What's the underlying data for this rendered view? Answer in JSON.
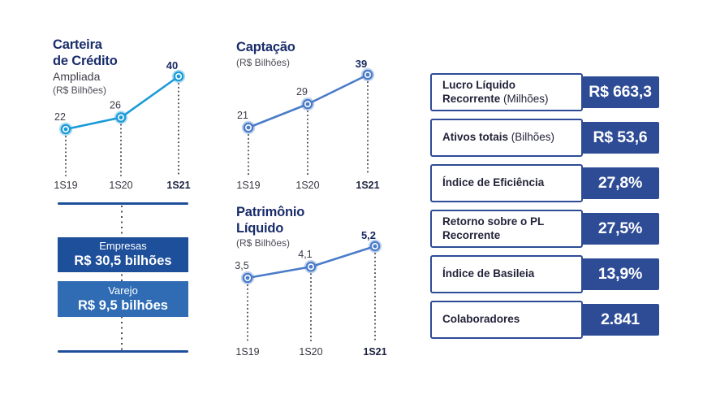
{
  "palette": {
    "title_navy": "#1a2d6b",
    "kpi_navy": "#2e4c96",
    "empresas_blue": "#1e4f9b",
    "varejo_blue": "#2f6cb4",
    "cyan_line": "#1b9bd8",
    "royal_line": "#4a7cc9",
    "dotted_gray": "#4d4d58"
  },
  "charts": [
    {
      "title_lines": [
        "Carteira",
        "de Crédito"
      ],
      "subtitle": "Ampliada",
      "unit": "(R$ Bilhões)",
      "color": "#1b9bd8",
      "x_labels": [
        "1S19",
        "1S20",
        "1S21"
      ],
      "values": [
        22,
        26,
        40
      ],
      "value_labels": [
        "22",
        "26",
        "40"
      ]
    },
    {
      "title_lines": [
        "Captação"
      ],
      "subtitle": "",
      "unit": "(R$ Bilhões)",
      "color": "#4a7cc9",
      "x_labels": [
        "1S19",
        "1S20",
        "1S21"
      ],
      "values": [
        21,
        29,
        39
      ],
      "value_labels": [
        "21",
        "29",
        "39"
      ]
    },
    {
      "title_lines": [
        "Patrimônio",
        "Líquido"
      ],
      "subtitle": "",
      "unit": "(R$ Bilhões)",
      "color": "#4a7cc9",
      "x_labels": [
        "1S19",
        "1S20",
        "1S21"
      ],
      "values": [
        3.5,
        4.1,
        5.2
      ],
      "value_labels": [
        "3,5",
        "4,1",
        "5,2"
      ]
    }
  ],
  "breakdown": {
    "items": [
      {
        "label": "Empresas",
        "value": "R$ 30,5 bilhões",
        "bg": "#1e4f9b"
      },
      {
        "label": "Varejo",
        "value": "R$ 9,5 bilhões",
        "bg": "#2f6cb4"
      }
    ]
  },
  "kpis": [
    {
      "label_bold": "Lucro Líquido Recorrente",
      "label_note": "(Milhões)",
      "value": "R$ 663,3"
    },
    {
      "label_bold": "Ativos totais",
      "label_note": "(Bilhões)",
      "value": "R$ 53,6"
    },
    {
      "label_bold": "Índice de Eficiência",
      "label_note": "",
      "value": "27,8%"
    },
    {
      "label_bold": "Retorno sobre o PL Recorrente",
      "label_note": "",
      "value": "27,5%"
    },
    {
      "label_bold": "Índice de Basileia",
      "label_note": "",
      "value": "13,9%"
    },
    {
      "label_bold": "Colaboradores",
      "label_note": "",
      "value": "2.841"
    }
  ],
  "chart_data": [
    {
      "type": "line",
      "title": "Carteira de Crédito Ampliada",
      "ylabel": "R$ Bilhões",
      "categories": [
        "1S19",
        "1S20",
        "1S21"
      ],
      "values": [
        22,
        26,
        40
      ],
      "color": "#1b9bd8",
      "grid": false,
      "legend_position": "none"
    },
    {
      "type": "line",
      "title": "Captação",
      "ylabel": "R$ Bilhões",
      "categories": [
        "1S19",
        "1S20",
        "1S21"
      ],
      "values": [
        21,
        29,
        39
      ],
      "color": "#4a7cc9",
      "grid": false,
      "legend_position": "none"
    },
    {
      "type": "line",
      "title": "Patrimônio Líquido",
      "ylabel": "R$ Bilhões",
      "categories": [
        "1S19",
        "1S20",
        "1S21"
      ],
      "values": [
        3.5,
        4.1,
        5.2
      ],
      "color": "#4a7cc9",
      "grid": false,
      "legend_position": "none"
    },
    {
      "type": "table",
      "title": "Carteira de Crédito por segmento",
      "rows": [
        [
          "Empresas",
          "R$ 30,5 bilhões"
        ],
        [
          "Varejo",
          "R$ 9,5 bilhões"
        ]
      ]
    },
    {
      "type": "table",
      "title": "Indicadores",
      "rows": [
        [
          "Lucro Líquido Recorrente (Milhões)",
          "R$ 663,3"
        ],
        [
          "Ativos totais (Bilhões)",
          "R$ 53,6"
        ],
        [
          "Índice de Eficiência",
          "27,8%"
        ],
        [
          "Retorno sobre o PL Recorrente",
          "27,5%"
        ],
        [
          "Índice de Basileia",
          "13,9%"
        ],
        [
          "Colaboradores",
          "2.841"
        ]
      ]
    }
  ]
}
